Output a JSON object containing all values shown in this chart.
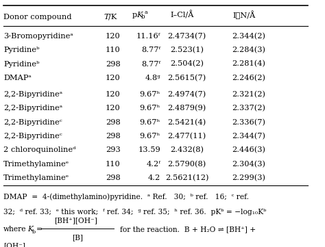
{
  "rows": [
    [
      "3-Bromopyridineᵃ",
      "120",
      "11.16ᶠ",
      "2.4734(7)",
      "2.344(2)"
    ],
    [
      "Pyridineᵇ",
      "110",
      "8.77ᶠ",
      "2.523(1)",
      "2.284(3)"
    ],
    [
      "Pyridineᵇ",
      "298",
      "8.77ᶠ",
      "2.504(2)",
      "2.281(4)"
    ],
    [
      "DMAPᵃ",
      "120",
      "4.8ᵍ",
      "2.5615(7)",
      "2.246(2)"
    ],
    [
      "2,2-Bipyridineᵃ",
      "120",
      "9.67ʰ",
      "2.4974(7)",
      "2.321(2)"
    ],
    [
      "2,2-Bipyridineᵃ",
      "120",
      "9.67ʰ",
      "2.4879(9)",
      "2.337(2)"
    ],
    [
      "2,2-Bipyridineᶜ",
      "298",
      "9.67ʰ",
      "2.5421(4)",
      "2.336(7)"
    ],
    [
      "2,2-Bipyridineᶜ",
      "298",
      "9.67ʰ",
      "2.477(11)",
      "2.344(7)"
    ],
    [
      "2 chloroquinolineᵈ",
      "293",
      "13.59",
      "2.432(8)",
      "2.446(3)"
    ],
    [
      "Trimethylamineᵉ",
      "110",
      "4.2ᶠ",
      "2.5790(8)",
      "2.304(3)"
    ],
    [
      "Trimethylamineᵉ",
      "298",
      "4.2",
      "2.5621(12)",
      "2.299(3)"
    ]
  ],
  "background": "#ffffff",
  "text_color": "#000000",
  "font_size": 8.2
}
